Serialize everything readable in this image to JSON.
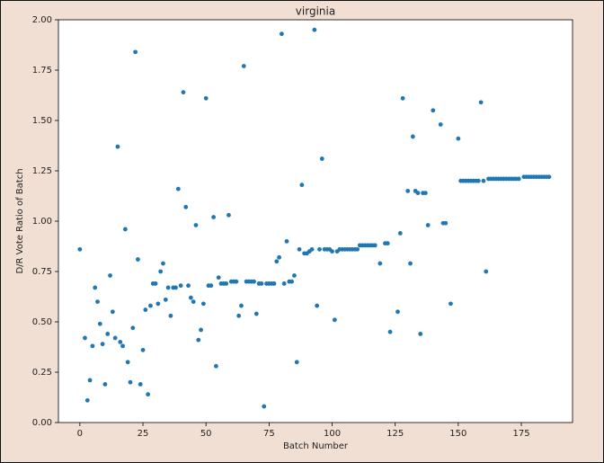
{
  "chart_data": {
    "type": "scatter",
    "title": "virginia",
    "x_label": "Batch Number",
    "y_label": "D/R Vote Ratio of Batch",
    "color": "#1f77b4",
    "grid": false,
    "xlim": [
      -8.5,
      195.3
    ],
    "ylim": [
      0,
      2
    ],
    "xticks": [
      0,
      25,
      50,
      75,
      100,
      125,
      150,
      175
    ],
    "yticks": [
      {
        "value": 0,
        "label": "0.00"
      },
      {
        "value": 0.25,
        "label": "0.25"
      },
      {
        "value": 0.5,
        "label": "0.50"
      },
      {
        "value": 0.75,
        "label": "0.75"
      },
      {
        "value": 1,
        "label": "1.00"
      },
      {
        "value": 1.25,
        "label": "1.25"
      },
      {
        "value": 1.5,
        "label": "1.50"
      },
      {
        "value": 1.75,
        "label": "1.75"
      },
      {
        "value": 2,
        "label": "2.00"
      }
    ],
    "x": [
      0,
      2,
      3,
      4,
      5,
      6,
      7,
      8,
      9,
      10,
      11,
      12,
      13,
      14,
      15,
      16,
      17,
      18,
      19,
      20,
      21,
      22,
      23,
      24,
      25,
      26,
      27,
      28,
      29,
      30,
      31,
      32,
      33,
      34,
      35,
      36,
      37,
      38,
      39,
      40,
      41,
      42,
      43,
      44,
      45,
      46,
      47,
      48,
      49,
      50,
      51,
      52,
      53,
      54,
      55,
      56,
      57,
      58,
      59,
      60,
      61,
      62,
      63,
      64,
      65,
      66,
      67,
      68,
      69,
      70,
      71,
      72,
      73,
      74,
      75,
      76,
      77,
      78,
      79,
      80,
      81,
      82,
      83,
      84,
      85,
      86,
      87,
      88,
      89,
      90,
      91,
      92,
      93,
      94,
      95,
      96,
      97,
      98,
      99,
      100,
      101,
      102,
      103,
      104,
      105,
      106,
      107,
      108,
      109,
      110,
      111,
      112,
      113,
      114,
      115,
      116,
      117,
      119,
      121,
      122,
      123,
      126,
      127,
      128,
      130,
      131,
      132,
      133,
      134,
      135,
      136,
      137,
      138,
      140,
      143,
      144,
      145,
      147,
      150,
      151,
      152,
      153,
      154,
      155,
      156,
      157,
      158,
      159,
      160,
      161,
      162,
      163,
      164,
      165,
      166,
      167,
      168,
      169,
      170,
      171,
      172,
      173,
      174,
      176,
      177,
      178,
      179,
      180,
      181,
      182,
      183,
      184,
      185,
      186
    ],
    "y": [
      0.86,
      0.42,
      0.11,
      0.21,
      0.38,
      0.67,
      0.6,
      0.49,
      0.39,
      0.19,
      0.44,
      0.73,
      0.55,
      0.42,
      1.37,
      0.4,
      0.38,
      0.96,
      0.3,
      0.2,
      0.47,
      1.84,
      0.81,
      0.19,
      0.36,
      0.56,
      0.14,
      0.58,
      0.69,
      0.69,
      0.59,
      0.75,
      0.79,
      0.61,
      0.67,
      0.53,
      0.67,
      0.67,
      1.16,
      0.68,
      1.64,
      1.07,
      0.68,
      0.62,
      0.6,
      0.98,
      0.41,
      0.46,
      0.59,
      1.61,
      0.68,
      0.68,
      1.02,
      0.28,
      0.72,
      0.69,
      0.69,
      0.69,
      1.03,
      0.7,
      0.7,
      0.7,
      0.53,
      0.58,
      1.77,
      0.7,
      0.7,
      0.7,
      0.7,
      0.54,
      0.69,
      0.69,
      0.08,
      0.69,
      0.69,
      0.69,
      0.69,
      0.8,
      0.82,
      1.93,
      0.69,
      0.9,
      0.7,
      0.7,
      0.73,
      0.3,
      0.86,
      1.18,
      0.84,
      0.84,
      0.85,
      0.86,
      1.95,
      0.58,
      0.86,
      1.31,
      0.86,
      0.86,
      0.86,
      0.85,
      0.51,
      0.85,
      0.86,
      0.86,
      0.86,
      0.86,
      0.86,
      0.86,
      0.86,
      0.86,
      0.88,
      0.88,
      0.88,
      0.88,
      0.88,
      0.88,
      0.88,
      0.79,
      0.89,
      0.89,
      0.45,
      0.55,
      0.94,
      1.61,
      1.15,
      0.79,
      1.42,
      1.15,
      1.14,
      0.44,
      1.14,
      1.14,
      0.98,
      1.55,
      1.48,
      0.99,
      0.99,
      0.59,
      1.41,
      1.2,
      1.2,
      1.2,
      1.2,
      1.2,
      1.2,
      1.2,
      1.2,
      1.59,
      1.2,
      0.75,
      1.21,
      1.21,
      1.21,
      1.21,
      1.21,
      1.21,
      1.21,
      1.21,
      1.21,
      1.21,
      1.21,
      1.21,
      1.21,
      1.22,
      1.22,
      1.22,
      1.22,
      1.22,
      1.22,
      1.22,
      1.22,
      1.22,
      1.22,
      1.22
    ]
  }
}
